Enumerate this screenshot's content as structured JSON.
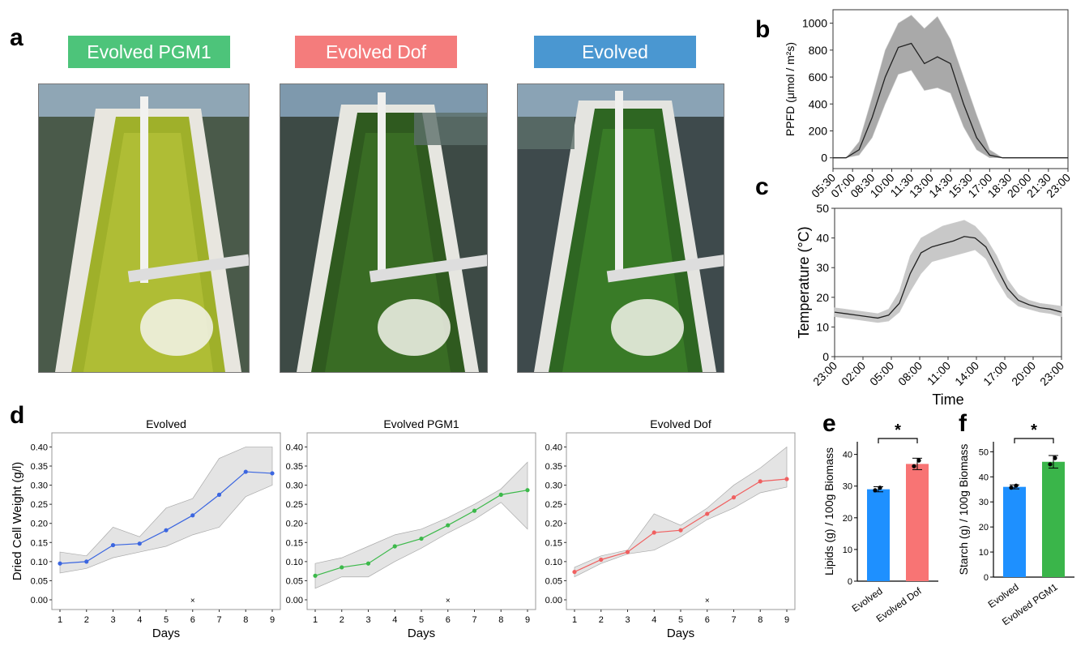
{
  "panel_letters": {
    "a": "a",
    "b": "b",
    "c": "c",
    "d": "d",
    "e": "e",
    "f": "f"
  },
  "photo_banners": [
    {
      "label": "Evolved PGM1",
      "color": "#4dc47a"
    },
    {
      "label": "Evolved Dof",
      "color": "#f47c7c"
    },
    {
      "label": "Evolved",
      "color": "#4a97d1"
    }
  ],
  "chart_data": [
    {
      "id": "b",
      "type": "line",
      "ylabel": "PPFD (μmol / m²s)",
      "xlabel": "",
      "x_ticks": [
        "05:30",
        "07:00",
        "08:30",
        "10:00",
        "11:30",
        "13:00",
        "14:30",
        "15:30",
        "17:00",
        "18:30",
        "20:00",
        "21:30",
        "23:00"
      ],
      "y_ticks": [
        0,
        200,
        400,
        600,
        800,
        1000
      ],
      "ylim": [
        -80,
        1100
      ],
      "series": [
        {
          "values": [
            0,
            0,
            60,
            300,
            600,
            820,
            850,
            700,
            750,
            700,
            400,
            150,
            20,
            0,
            0,
            0,
            0,
            0,
            0
          ]
        }
      ],
      "band_upper": [
        0,
        0,
        120,
        450,
        800,
        1000,
        1060,
        960,
        1050,
        880,
        600,
        320,
        60,
        0,
        0,
        0,
        0,
        0,
        0
      ],
      "band_lower": [
        0,
        0,
        20,
        150,
        400,
        620,
        650,
        500,
        520,
        480,
        230,
        60,
        0,
        0,
        0,
        0,
        0,
        0,
        0
      ]
    },
    {
      "id": "c",
      "type": "line",
      "ylabel": "Temperature (°C)",
      "xlabel": "Time",
      "x_ticks": [
        "23:00",
        "02:00",
        "05:00",
        "08:00",
        "11:00",
        "14:00",
        "17:00",
        "20:00",
        "23:00"
      ],
      "y_ticks": [
        0,
        10,
        20,
        30,
        40,
        50
      ],
      "ylim": [
        0,
        50
      ],
      "series": [
        {
          "values": [
            15,
            14.5,
            14,
            13.5,
            13,
            14,
            18,
            28,
            35,
            37,
            38,
            39,
            40.5,
            40,
            37,
            30,
            23,
            19,
            17.5,
            16.5,
            16,
            15
          ]
        }
      ],
      "band_upper": [
        16.5,
        16,
        15.5,
        15,
        14.5,
        16,
        22,
        34,
        40,
        42,
        44,
        45,
        46,
        44,
        40,
        34,
        26,
        21,
        19,
        18,
        17.5,
        17
      ],
      "band_lower": [
        13.5,
        13,
        12.5,
        12,
        11.5,
        12,
        15,
        22,
        28,
        32,
        33,
        34,
        35,
        36,
        33,
        26,
        20,
        17,
        16,
        15,
        14.5,
        13.5
      ]
    },
    {
      "id": "d1",
      "type": "line",
      "title": "Evolved",
      "ylabel": "Dried Cell Weight (g/l)",
      "xlabel": "Days",
      "x": [
        1,
        2,
        3,
        4,
        5,
        6,
        7,
        8,
        9
      ],
      "y_ticks": [
        0.0,
        0.05,
        0.1,
        0.15,
        0.2,
        0.25,
        0.3,
        0.35,
        0.4
      ],
      "ylim": [
        0,
        0.42
      ],
      "color": "#3b66e0",
      "series": [
        {
          "values": [
            0.095,
            0.1,
            0.143,
            0.147,
            0.182,
            0.221,
            0.275,
            0.335,
            0.331
          ]
        }
      ],
      "band_upper": [
        0.125,
        0.115,
        0.19,
        0.165,
        0.24,
        0.265,
        0.37,
        0.4,
        0.4
      ],
      "band_lower": [
        0.07,
        0.082,
        0.11,
        0.125,
        0.14,
        0.17,
        0.19,
        0.27,
        0.3
      ],
      "marker_day": 6
    },
    {
      "id": "d2",
      "type": "line",
      "title": "Evolved PGM1",
      "xlabel": "Days",
      "x": [
        1,
        2,
        3,
        4,
        5,
        6,
        7,
        8,
        9
      ],
      "y_ticks": [
        0.0,
        0.05,
        0.1,
        0.15,
        0.2,
        0.25,
        0.3,
        0.35,
        0.4
      ],
      "ylim": [
        0,
        0.42
      ],
      "color": "#3cb94a",
      "series": [
        {
          "values": [
            0.063,
            0.085,
            0.095,
            0.14,
            0.16,
            0.195,
            0.233,
            0.275,
            0.287
          ]
        }
      ],
      "band_upper": [
        0.095,
        0.11,
        0.14,
        0.17,
        0.185,
        0.215,
        0.25,
        0.29,
        0.36
      ],
      "band_lower": [
        0.03,
        0.06,
        0.06,
        0.1,
        0.135,
        0.175,
        0.21,
        0.255,
        0.185
      ],
      "marker_day": 6
    },
    {
      "id": "d3",
      "type": "line",
      "title": "Evolved Dof",
      "xlabel": "Days",
      "x": [
        1,
        2,
        3,
        4,
        5,
        6,
        7,
        8,
        9
      ],
      "y_ticks": [
        0.0,
        0.05,
        0.1,
        0.15,
        0.2,
        0.25,
        0.3,
        0.35,
        0.4
      ],
      "ylim": [
        0,
        0.42
      ],
      "color": "#f06060",
      "series": [
        {
          "values": [
            0.073,
            0.105,
            0.125,
            0.176,
            0.182,
            0.225,
            0.268,
            0.31,
            0.316
          ]
        }
      ],
      "band_upper": [
        0.085,
        0.115,
        0.13,
        0.225,
        0.195,
        0.24,
        0.3,
        0.345,
        0.4
      ],
      "band_lower": [
        0.06,
        0.095,
        0.12,
        0.13,
        0.165,
        0.21,
        0.24,
        0.28,
        0.295
      ],
      "marker_day": 6
    },
    {
      "id": "e",
      "type": "bar",
      "ylabel": "Lipids (g) / 100g Biomass",
      "categories": [
        "Evolved",
        "Evolved Dof"
      ],
      "values": [
        29,
        37
      ],
      "errors": [
        0.8,
        1.8
      ],
      "colors": [
        "#1e90ff",
        "#f87474"
      ],
      "y_ticks": [
        0,
        10,
        20,
        30,
        40
      ],
      "ylim": [
        0,
        44
      ],
      "significance": "*"
    },
    {
      "id": "f",
      "type": "bar",
      "ylabel": "Starch (g) / 100g Biomass",
      "categories": [
        "Evolved",
        "Evolved PGM1"
      ],
      "values": [
        36,
        46
      ],
      "errors": [
        0.8,
        2.5
      ],
      "colors": [
        "#1e90ff",
        "#3ab54a"
      ],
      "y_ticks": [
        0,
        10,
        20,
        30,
        40,
        50
      ],
      "ylim": [
        0,
        54
      ],
      "significance": "*"
    }
  ]
}
